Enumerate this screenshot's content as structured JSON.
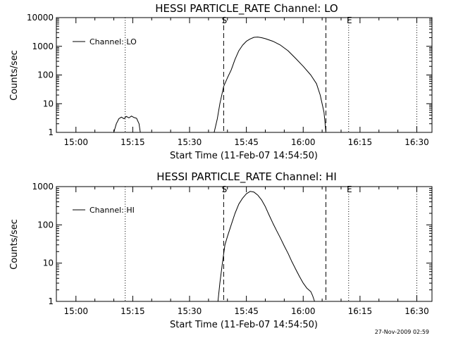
{
  "chart_data": [
    {
      "type": "line",
      "title": "HESSI PARTICLE_RATE Channel: LO",
      "xlabel": "Start Time (11-Feb-07 14:54:50)",
      "ylabel": "Counts/sec",
      "y_scale": "log",
      "xlim": [
        "14:54:50",
        "16:34:00"
      ],
      "ylim": [
        1,
        10000
      ],
      "x_ticks": [
        "15:00",
        "15:15",
        "15:30",
        "15:45",
        "16:00",
        "16:15",
        "16:30"
      ],
      "y_ticks": [
        1,
        10,
        100,
        1000,
        10000
      ],
      "y_tick_labels": [
        "1",
        "10",
        "100",
        "1000",
        "10000"
      ],
      "legend": {
        "position": "top-left",
        "entries": [
          "Channel: LO"
        ]
      },
      "markers": [
        {
          "label": "",
          "time": "15:13:00",
          "style": "dotted"
        },
        {
          "label": "S",
          "time": "15:39:00",
          "style": "dashed"
        },
        {
          "label": "",
          "time": "16:06:00",
          "style": "dashed"
        },
        {
          "label": "E",
          "time": "16:12:00",
          "style": "dotted"
        },
        {
          "label": "",
          "time": "16:30:00",
          "style": "dotted"
        }
      ],
      "series": [
        {
          "name": "Channel: LO",
          "segments": [
            [
              [
                "15:10:00",
                1
              ],
              [
                "15:10:40",
                2.0
              ],
              [
                "15:11:20",
                3.0
              ],
              [
                "15:12:00",
                3.4
              ],
              [
                "15:12:40",
                3.0
              ],
              [
                "15:13:20",
                3.6
              ],
              [
                "15:14:00",
                3.2
              ],
              [
                "15:14:40",
                3.7
              ],
              [
                "15:15:20",
                3.3
              ],
              [
                "15:16:00",
                3.1
              ],
              [
                "15:16:40",
                2.0
              ],
              [
                "15:17:00",
                1
              ]
            ],
            [
              [
                "15:36:30",
                1
              ],
              [
                "15:37:20",
                3
              ],
              [
                "15:38:00",
                10
              ],
              [
                "15:39:00",
                40
              ],
              [
                "15:40:00",
                80
              ],
              [
                "15:41:00",
                150
              ],
              [
                "15:42:00",
                350
              ],
              [
                "15:43:00",
                700
              ],
              [
                "15:44:00",
                1100
              ],
              [
                "15:45:00",
                1500
              ],
              [
                "15:46:00",
                1800
              ],
              [
                "15:47:00",
                2050
              ],
              [
                "15:48:00",
                2100
              ],
              [
                "15:49:00",
                2000
              ],
              [
                "15:50:00",
                1850
              ],
              [
                "15:52:00",
                1500
              ],
              [
                "15:54:00",
                1100
              ],
              [
                "15:56:00",
                700
              ],
              [
                "15:58:00",
                380
              ],
              [
                "16:00:00",
                200
              ],
              [
                "16:02:00",
                100
              ],
              [
                "16:03:30",
                50
              ],
              [
                "16:04:30",
                20
              ],
              [
                "16:05:30",
                5
              ],
              [
                "16:06:00",
                1
              ]
            ]
          ]
        }
      ]
    },
    {
      "type": "line",
      "title": "HESSI PARTICLE_RATE Channel: HI",
      "xlabel": "Start Time (11-Feb-07 14:54:50)",
      "ylabel": "Counts/sec",
      "y_scale": "log",
      "xlim": [
        "14:54:50",
        "16:34:00"
      ],
      "ylim": [
        1,
        1000
      ],
      "x_ticks": [
        "15:00",
        "15:15",
        "15:30",
        "15:45",
        "16:00",
        "16:15",
        "16:30"
      ],
      "y_ticks": [
        1,
        10,
        100,
        1000
      ],
      "y_tick_labels": [
        "1",
        "10",
        "100",
        "1000"
      ],
      "legend": {
        "position": "top-left",
        "entries": [
          "Channel: HI"
        ]
      },
      "markers": [
        {
          "label": "",
          "time": "15:13:00",
          "style": "dotted"
        },
        {
          "label": "S",
          "time": "15:39:00",
          "style": "dashed"
        },
        {
          "label": "",
          "time": "16:06:00",
          "style": "dashed"
        },
        {
          "label": "E",
          "time": "16:12:00",
          "style": "dotted"
        },
        {
          "label": "",
          "time": "16:30:00",
          "style": "dotted"
        }
      ],
      "series": [
        {
          "name": "Channel: HI",
          "segments": [
            [
              [
                "15:37:30",
                1
              ],
              [
                "15:38:00",
                3
              ],
              [
                "15:38:40",
                10
              ],
              [
                "15:39:20",
                30
              ],
              [
                "15:40:00",
                50
              ],
              [
                "15:41:00",
                100
              ],
              [
                "15:42:00",
                200
              ],
              [
                "15:43:00",
                350
              ],
              [
                "15:44:00",
                500
              ],
              [
                "15:45:00",
                650
              ],
              [
                "15:46:00",
                750
              ],
              [
                "15:47:00",
                720
              ],
              [
                "15:48:00",
                600
              ],
              [
                "15:49:00",
                450
              ],
              [
                "15:50:00",
                300
              ],
              [
                "15:51:00",
                180
              ],
              [
                "15:52:00",
                110
              ],
              [
                "15:53:00",
                70
              ],
              [
                "15:54:00",
                45
              ],
              [
                "15:55:00",
                28
              ],
              [
                "15:56:00",
                18
              ],
              [
                "15:57:00",
                11
              ],
              [
                "15:58:00",
                7
              ],
              [
                "15:59:00",
                4.5
              ],
              [
                "16:00:00",
                3.0
              ],
              [
                "16:01:00",
                2.2
              ],
              [
                "16:02:00",
                1.8
              ],
              [
                "16:02:30",
                1.4
              ],
              [
                "16:03:00",
                1
              ]
            ]
          ]
        }
      ]
    }
  ],
  "footer": {
    "timestamp": "27-Nov-2009 02:59"
  }
}
